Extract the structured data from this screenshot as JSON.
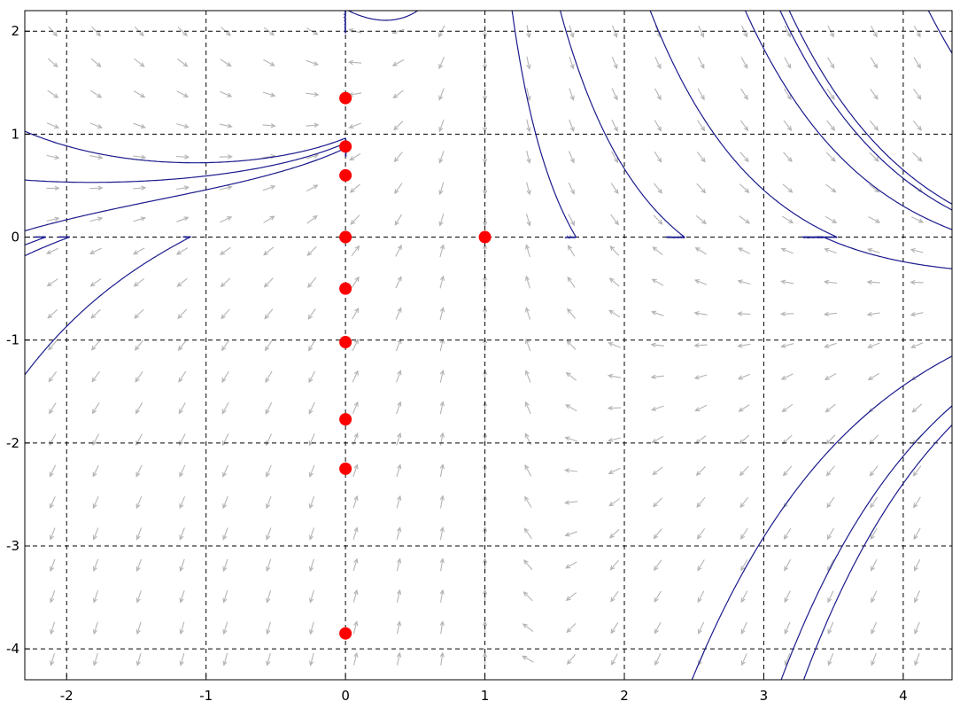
{
  "chart_data": {
    "type": "scatter",
    "title": "",
    "xlabel": "",
    "ylabel": "",
    "xlim": [
      -2.3,
      4.35
    ],
    "ylim": [
      -4.3,
      2.2
    ],
    "grid": true,
    "grid_style": "dashed",
    "x_ticks": [
      -2,
      -1,
      0,
      1,
      2,
      3,
      4
    ],
    "y_ticks": [
      2,
      1,
      0,
      -1,
      -2,
      -3,
      -4
    ],
    "x_tick_labels": [
      "-2",
      "-1",
      "0",
      "1",
      "2",
      "3",
      "4"
    ],
    "y_tick_labels": [
      "2",
      "1",
      "0",
      "-1",
      "-2",
      "-3",
      "-4"
    ],
    "direction_field": {
      "color": "#b4b4b4",
      "x_range": [
        -2.1,
        4.1
      ],
      "y_range": [
        -4.1,
        2.0
      ],
      "columns": 21,
      "rows": 21
    },
    "trajectories": {
      "color": "#1a1a8c",
      "starts": [
        [
          0,
          1.35
        ],
        [
          0,
          0.88
        ],
        [
          0,
          0.6
        ],
        [
          0,
          0
        ],
        [
          0,
          -0.5
        ],
        [
          0,
          -1.02
        ],
        [
          0,
          -1.77
        ],
        [
          0,
          -2.25
        ],
        [
          0,
          -3.85
        ],
        [
          0,
          -1.1
        ],
        [
          0,
          -1.2
        ],
        [
          0,
          -1.3
        ],
        [
          0,
          -1.4
        ],
        [
          0,
          -1.5
        ],
        [
          0,
          -1.6
        ],
        [
          0,
          -0.75
        ],
        [
          0,
          -1.9
        ],
        [
          0,
          -2.1
        ],
        [
          0,
          -2.5
        ],
        [
          0,
          -2.8
        ],
        [
          0,
          -3.2
        ],
        [
          0,
          -3.5
        ],
        [
          -2.25,
          1.0
        ],
        [
          -2.25,
          0.55
        ],
        [
          -2.25,
          0.08
        ],
        [
          -2.25,
          -0.05
        ],
        [
          -2.25,
          -0.15
        ],
        [
          0.45,
          2.15
        ],
        [
          1.2,
          2.15
        ],
        [
          1.55,
          2.15
        ],
        [
          2.2,
          2.15
        ],
        [
          3.2,
          2.15
        ],
        [
          4.2,
          2.15
        ],
        [
          -2.25,
          -1.25
        ],
        [
          3.3,
          -4.25
        ],
        [
          4.3,
          -1.7
        ],
        [
          2.5,
          -4.25
        ],
        [
          4.3,
          0.3
        ],
        [
          4.3,
          0.1
        ],
        [
          4.3,
          -0.3
        ]
      ]
    },
    "points": {
      "color": "#ff0000",
      "x": [
        0,
        0,
        0,
        0,
        0,
        0,
        0,
        0,
        0,
        1
      ],
      "y": [
        1.35,
        0.88,
        0.6,
        0,
        -0.5,
        -1.02,
        -1.77,
        -2.25,
        -3.85,
        0
      ]
    }
  }
}
